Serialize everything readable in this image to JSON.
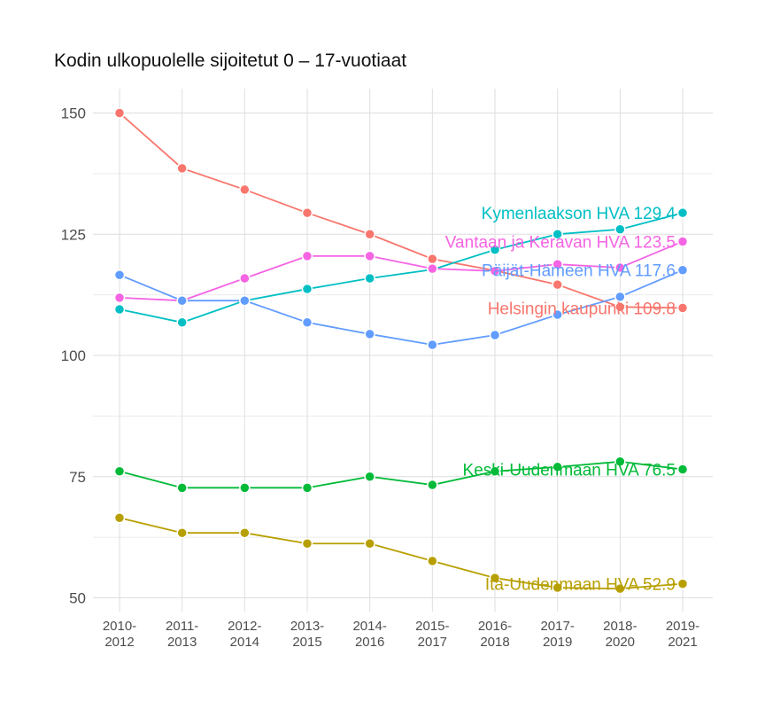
{
  "chart_data": {
    "type": "line",
    "title": "Kodin ulkopuolelle sijoitetut 0 – 17-vuotiaat",
    "xlabel": "",
    "ylabel": "",
    "categories": [
      [
        "2010-",
        "2012"
      ],
      [
        "2011-",
        "2013"
      ],
      [
        "2012-",
        "2014"
      ],
      [
        "2013-",
        "2015"
      ],
      [
        "2014-",
        "2016"
      ],
      [
        "2015-",
        "2017"
      ],
      [
        "2016-",
        "2018"
      ],
      [
        "2017-",
        "2019"
      ],
      [
        "2018-",
        "2020"
      ],
      [
        "2019-",
        "2021"
      ]
    ],
    "yticks": [
      "50",
      "75",
      "100",
      "125",
      "150"
    ],
    "ylim": [
      47,
      155
    ],
    "grid": true,
    "series": [
      {
        "name": "Helsingin kaupunki",
        "label": "Helsingin kaupunki 109.8",
        "color": "#F8766D",
        "values": [
          150.0,
          138.6,
          134.2,
          129.4,
          125.0,
          119.9,
          117.5,
          114.6,
          110.0,
          109.8
        ]
      },
      {
        "name": "Kymenlaakson HVA",
        "label": "Kymenlaakson HVA 129.4",
        "color": "#00BFC4",
        "values": [
          109.5,
          106.8,
          111.3,
          113.7,
          115.9,
          117.7,
          121.8,
          125.0,
          126.0,
          129.4
        ]
      },
      {
        "name": "Vantaan ja Keravan HVA",
        "label": "Vantaan ja Keravan HVA 123.5",
        "color": "#F564E3",
        "values": [
          111.9,
          111.3,
          115.9,
          120.5,
          120.5,
          117.9,
          117.4,
          118.8,
          118.1,
          123.5
        ]
      },
      {
        "name": "Päijät-Hämeen HVA",
        "label": "Päijät-Hämeen HVA 117.6",
        "color": "#619CFF",
        "values": [
          116.6,
          111.3,
          111.3,
          106.8,
          104.4,
          102.2,
          104.2,
          108.4,
          112.1,
          117.6
        ]
      },
      {
        "name": "Keski-Uudenmaan HVA",
        "label": "Keski-Uudenmaan HVA 76.5",
        "color": "#00BA38",
        "values": [
          76.1,
          72.7,
          72.7,
          72.7,
          75.0,
          73.3,
          76.1,
          77.0,
          78.1,
          76.5
        ]
      },
      {
        "name": "Itä-Uudenmaan HVA",
        "label": "Itä-Uudenmaan HVA 52.9",
        "color": "#B79F00",
        "values": [
          66.5,
          63.4,
          63.4,
          61.2,
          61.2,
          57.6,
          54.1,
          52.1,
          51.9,
          52.9
        ]
      }
    ]
  }
}
